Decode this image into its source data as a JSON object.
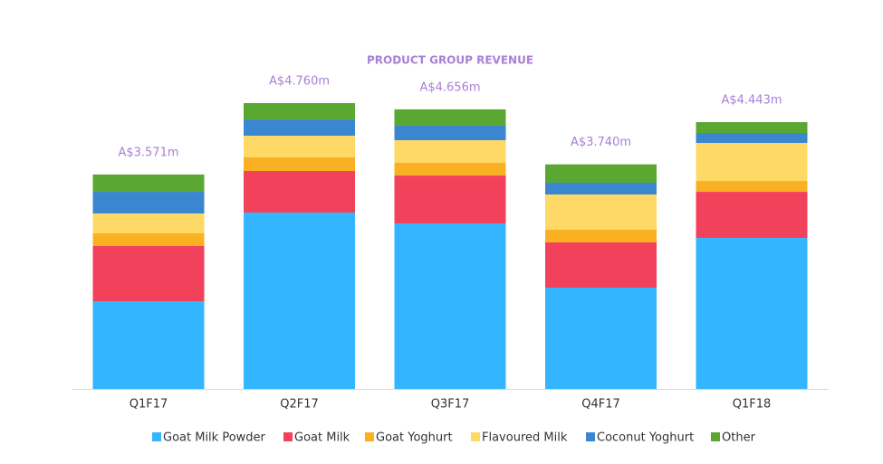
{
  "chart_data": {
    "type": "stacked_bar",
    "title": "PRODUCT GROUP REVENUE",
    "categories": [
      "Q1F17",
      "Q2F17",
      "Q3F17",
      "Q4F17",
      "Q1F18"
    ],
    "series": [
      {
        "name": "Goat Milk Powder",
        "color": "#33b5ff",
        "values": [
          1.461,
          2.937,
          2.756,
          1.687,
          2.515
        ]
      },
      {
        "name": "Goat Milk",
        "color": "#f2415a",
        "values": [
          0.919,
          0.693,
          0.798,
          0.753,
          0.768
        ]
      },
      {
        "name": "Goat Yoghurt",
        "color": "#f9b022",
        "values": [
          0.211,
          0.226,
          0.211,
          0.211,
          0.181
        ]
      },
      {
        "name": "Flavoured Milk",
        "color": "#fed966",
        "values": [
          0.331,
          0.361,
          0.377,
          0.587,
          0.633
        ]
      },
      {
        "name": "Coconut Yoghurt",
        "color": "#3a86d0",
        "values": [
          0.361,
          0.271,
          0.241,
          0.196,
          0.166
        ]
      },
      {
        "name": "Other",
        "color": "#5aa832",
        "values": [
          0.288,
          0.272,
          0.273,
          0.306,
          0.18
        ]
      }
    ],
    "totals": [
      3.571,
      4.76,
      4.656,
      3.74,
      4.443
    ],
    "total_labels": [
      "A$3.571m",
      "A$4.760m",
      "A$4.656m",
      "A$3.740m",
      "A$4.443m"
    ]
  }
}
